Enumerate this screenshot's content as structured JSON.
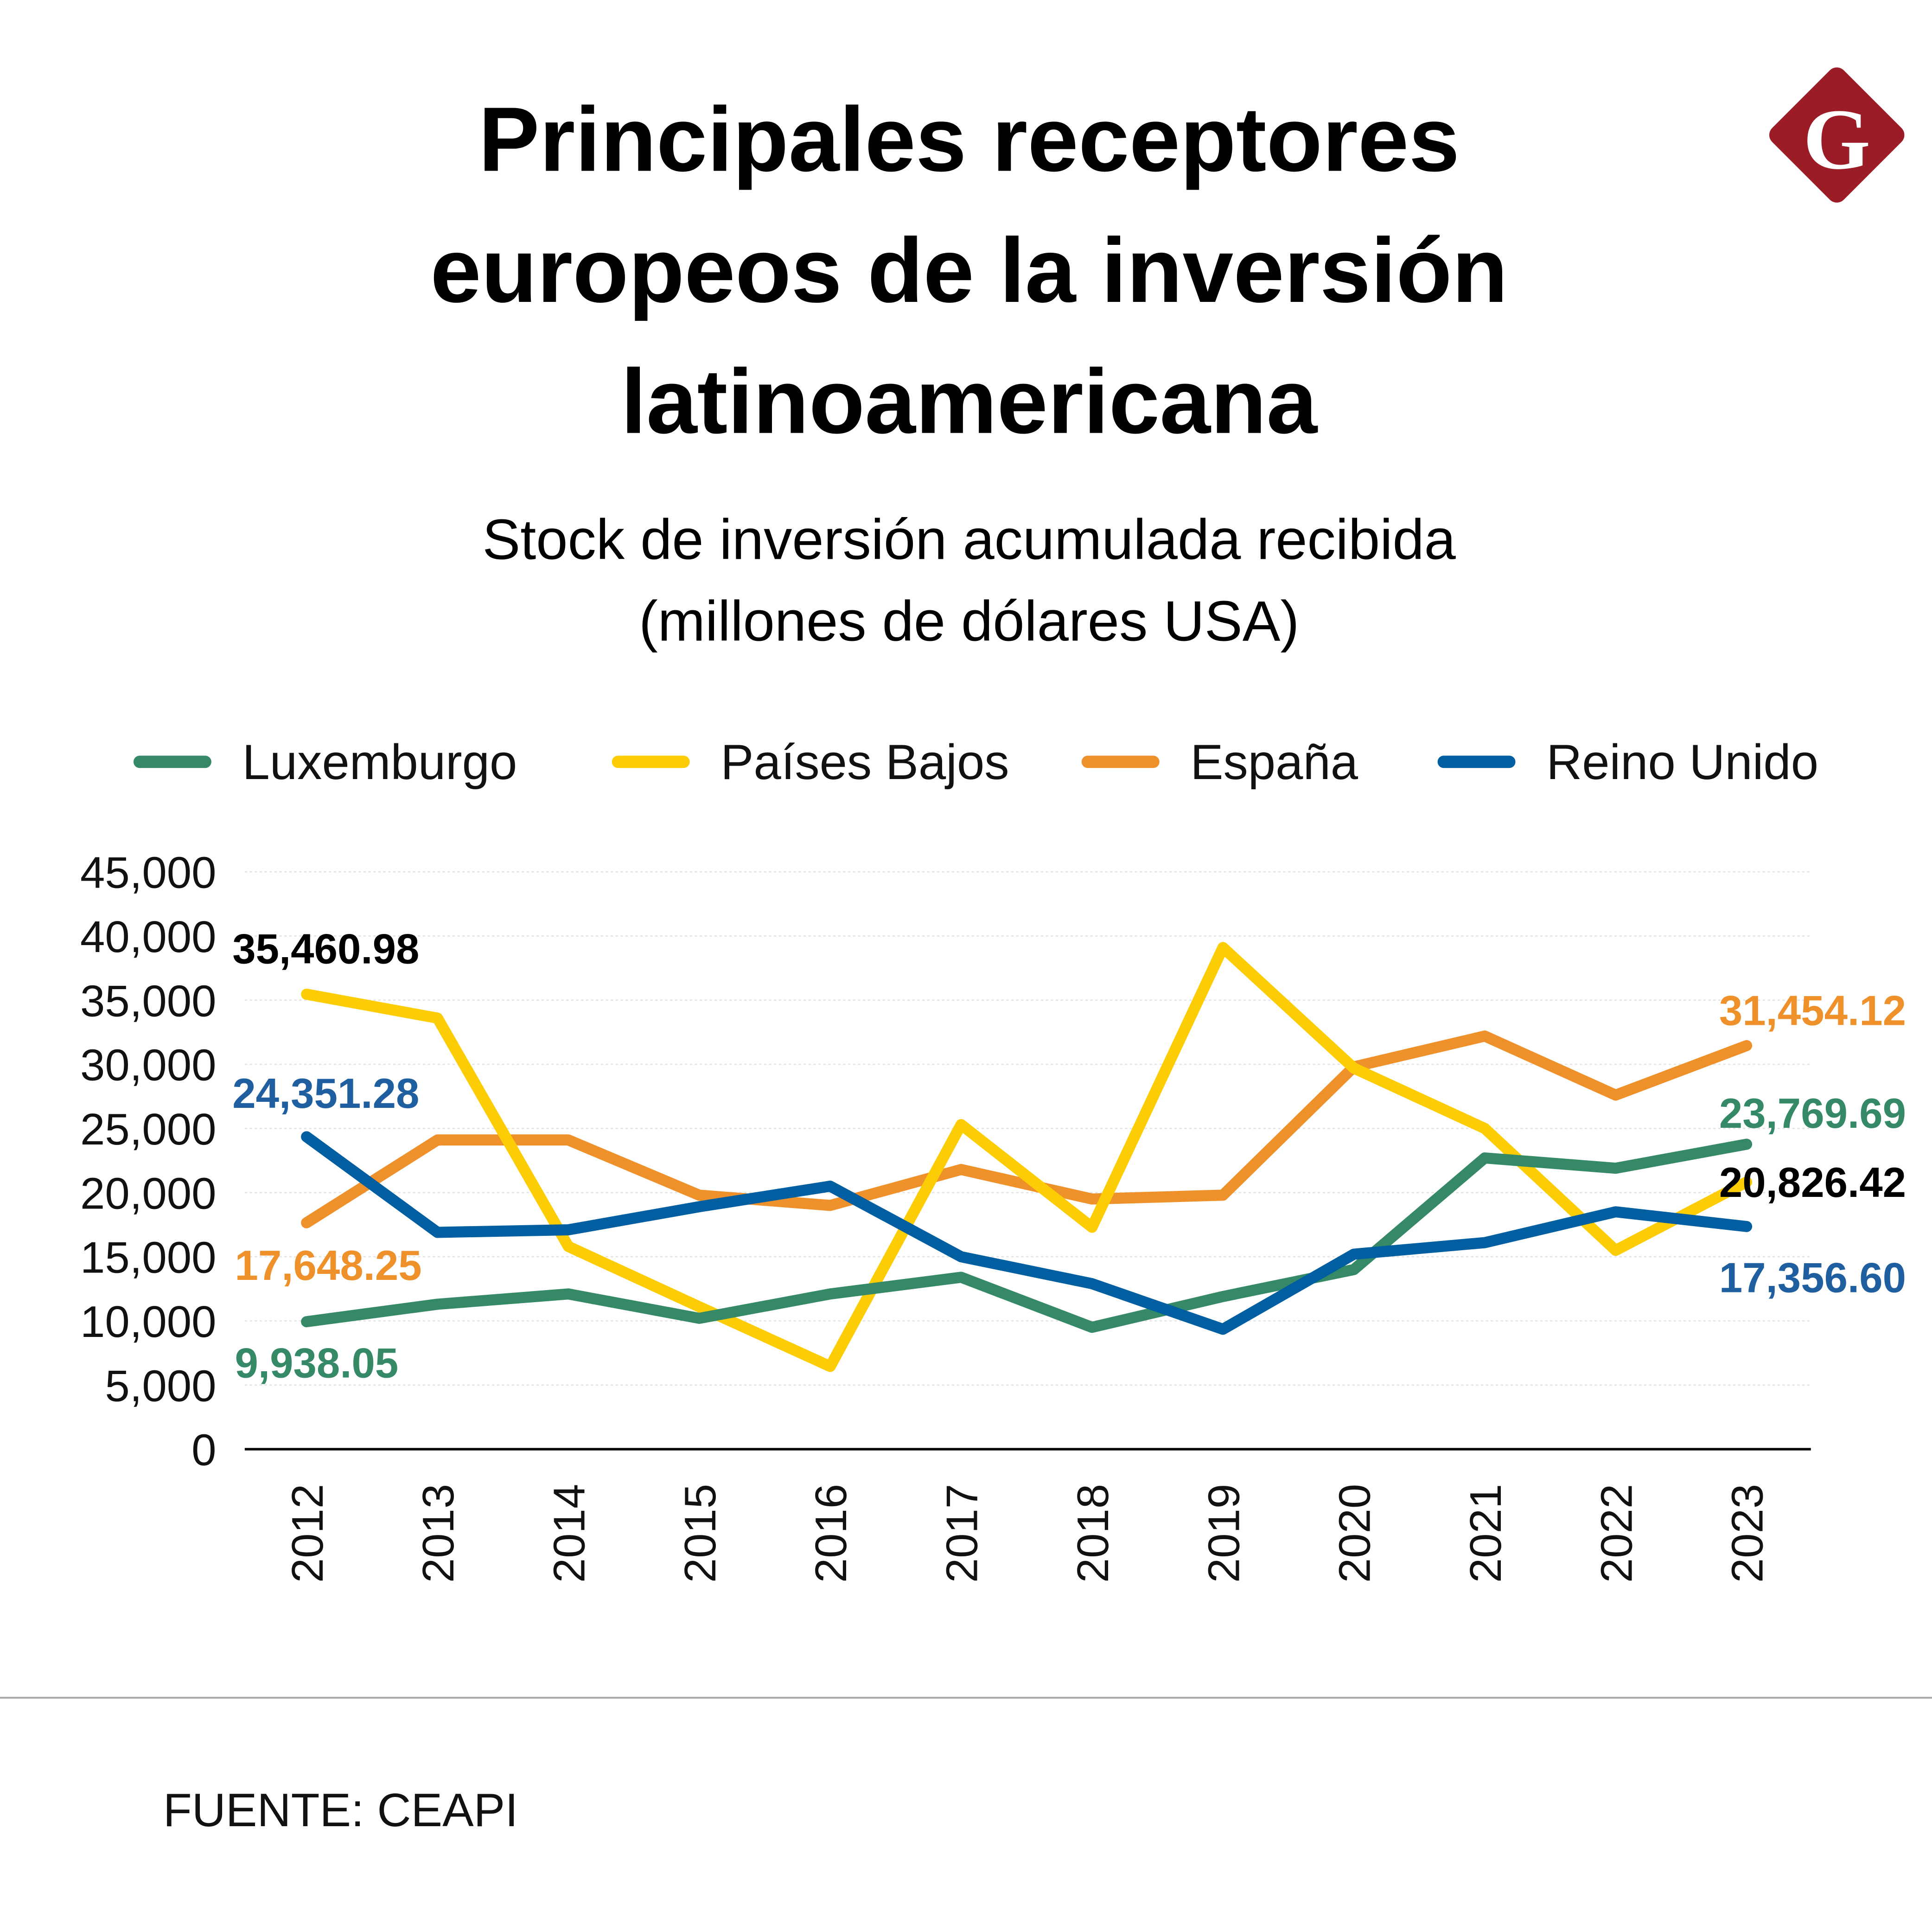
{
  "title_lines": [
    "Principales receptores",
    "europeos de la inversión",
    "latinoamericana"
  ],
  "subtitle_lines": [
    "Stock de inversión acumulada recibida",
    "(millones de dólares USA)"
  ],
  "logo": {
    "letter": "G",
    "color": "#9b1c26"
  },
  "source": "FUENTE: CEAPI",
  "chart_data": {
    "type": "line",
    "title": "",
    "xlabel": "",
    "ylabel": "",
    "ylim": [
      0,
      45000
    ],
    "yticks": [
      0,
      5000,
      10000,
      15000,
      20000,
      25000,
      30000,
      35000,
      40000,
      45000
    ],
    "ytick_labels": [
      "0",
      "5,000",
      "10,000",
      "15,000",
      "20,000",
      "25,000",
      "30,000",
      "35,000",
      "40,000",
      "45,000"
    ],
    "grid": true,
    "legend_position": "top",
    "categories": [
      "2012",
      "2013",
      "2014",
      "2015",
      "2016",
      "2017",
      "2018",
      "2019",
      "2020",
      "2021",
      "2022",
      "2023"
    ],
    "series": [
      {
        "name": "Luxemburgo",
        "color": "#358966",
        "values": [
          9938.05,
          11300,
          12100,
          10200,
          12100,
          13400,
          9500,
          11900,
          14000,
          22700,
          21900,
          23769.69
        ],
        "labels": {
          "first": "9,938.05",
          "last": "23,769.69"
        },
        "label_colors": {
          "first": "#358966",
          "last": "#358966"
        }
      },
      {
        "name": "Países Bajos",
        "color": "#fccd04",
        "values": [
          35460.98,
          33600,
          15800,
          11100,
          6450,
          25300,
          17300,
          39100,
          29700,
          25000,
          15500,
          20826.42
        ],
        "labels": {
          "first": "35,460.98",
          "last": "20,826.42"
        },
        "label_colors": {
          "first": "#000000",
          "last": "#000000"
        }
      },
      {
        "name": "España",
        "color": "#ef912b",
        "values": [
          17648.25,
          24100,
          24100,
          19800,
          19000,
          21800,
          19500,
          19800,
          29800,
          32200,
          27600,
          31454.12
        ],
        "labels": {
          "first": "17,648.25",
          "last": "31,454.12"
        },
        "label_colors": {
          "first": "#ef912b",
          "last": "#ef912b"
        }
      },
      {
        "name": "Reino Unido",
        "color": "#005ea1",
        "values": [
          24351.28,
          16900,
          17100,
          18900,
          20500,
          15000,
          12900,
          9350,
          15200,
          16100,
          18500,
          17356.6
        ],
        "labels": {
          "first": "24,351.28",
          "last": "17,356.60"
        },
        "label_colors": {
          "first": "#1f5fa0",
          "last": "#1f5fa0"
        }
      }
    ]
  }
}
